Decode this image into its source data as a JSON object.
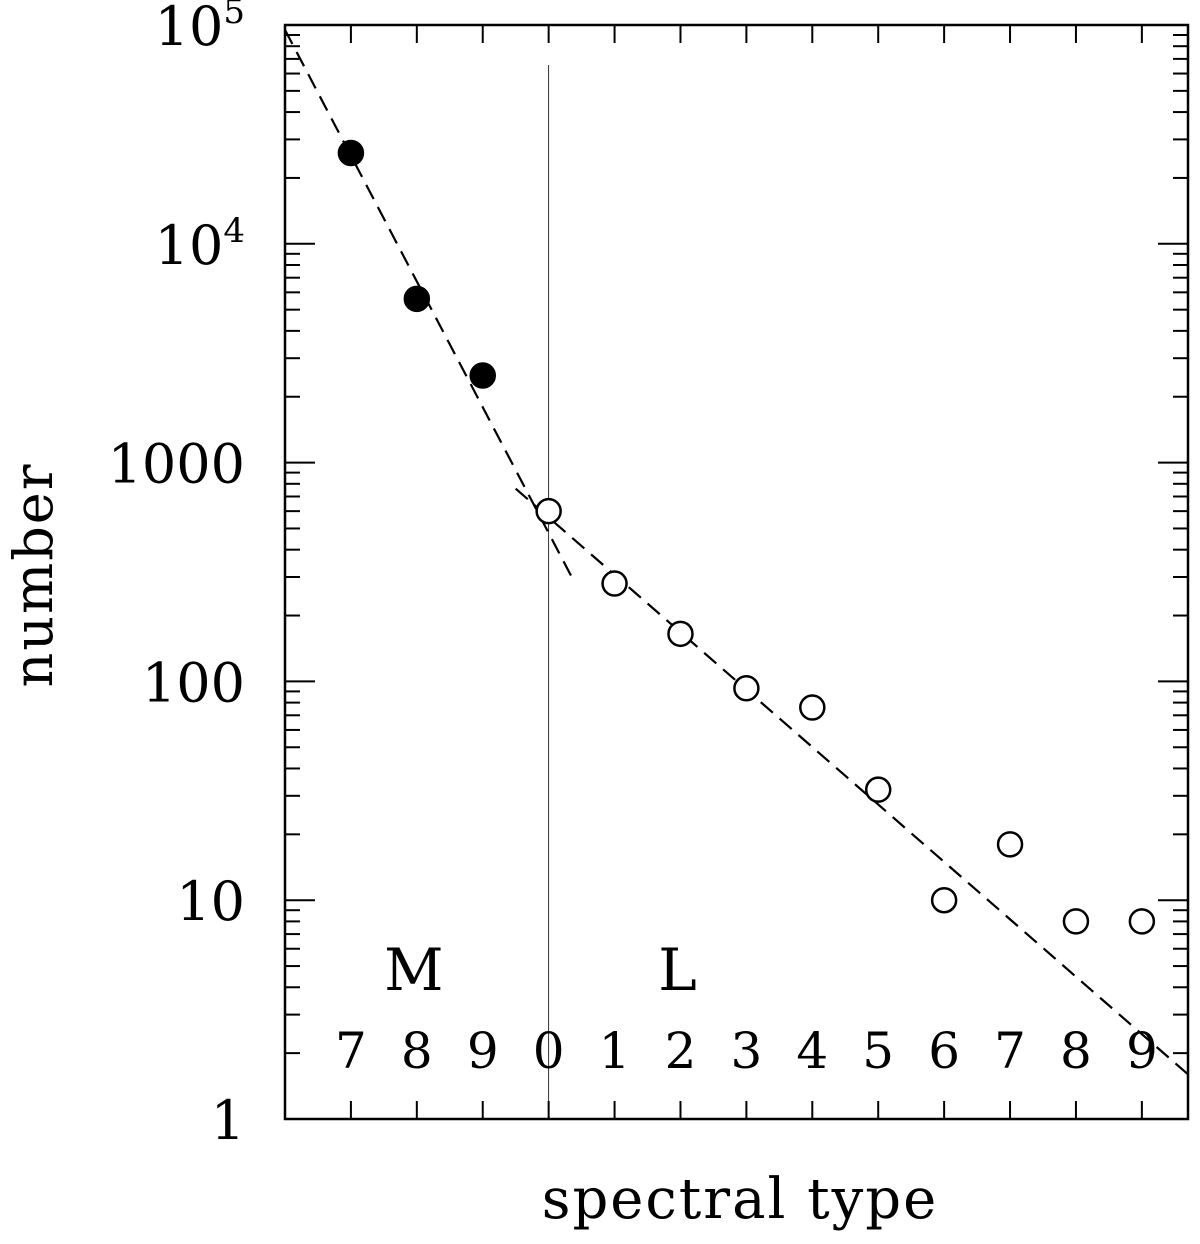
{
  "chart_data": {
    "type": "scatter",
    "xlabel": "spectral type",
    "ylabel": "number",
    "yscale": "log",
    "ylim": [
      1,
      100000
    ],
    "xlim": [
      6,
      19.7
    ],
    "y_tick_labels": [
      {
        "value": 1,
        "base": "1",
        "exp": ""
      },
      {
        "value": 10,
        "base": "10",
        "exp": ""
      },
      {
        "value": 100,
        "base": "100",
        "exp": ""
      },
      {
        "value": 1000,
        "base": "1000",
        "exp": ""
      },
      {
        "value": 10000,
        "base": "10",
        "exp": "4"
      },
      {
        "value": 100000,
        "base": "10",
        "exp": "5"
      }
    ],
    "x_tick_labels": [
      {
        "value": 7,
        "label": "7"
      },
      {
        "value": 8,
        "label": "8"
      },
      {
        "value": 9,
        "label": "9"
      },
      {
        "value": 10,
        "label": "0"
      },
      {
        "value": 11,
        "label": "1"
      },
      {
        "value": 12,
        "label": "2"
      },
      {
        "value": 13,
        "label": "3"
      },
      {
        "value": 14,
        "label": "4"
      },
      {
        "value": 15,
        "label": "5"
      },
      {
        "value": 16,
        "label": "6"
      },
      {
        "value": 17,
        "label": "7"
      },
      {
        "value": 18,
        "label": "8"
      },
      {
        "value": 19,
        "label": "9"
      }
    ],
    "class_labels": [
      {
        "text": "M",
        "x": 8
      },
      {
        "text": "L",
        "x": 12
      }
    ],
    "divider_x": 10,
    "series": [
      {
        "marker": "filled-circle",
        "points": [
          {
            "x": 7,
            "y": 26000
          },
          {
            "x": 8,
            "y": 5600
          },
          {
            "x": 9,
            "y": 2500
          }
        ]
      },
      {
        "marker": "open-circle",
        "points": [
          {
            "x": 10,
            "y": 600
          },
          {
            "x": 11,
            "y": 280
          },
          {
            "x": 12,
            "y": 165
          },
          {
            "x": 13,
            "y": 93
          },
          {
            "x": 14,
            "y": 76
          },
          {
            "x": 15,
            "y": 32
          },
          {
            "x": 16,
            "y": 10
          },
          {
            "x": 17,
            "y": 18
          },
          {
            "x": 18,
            "y": 8
          },
          {
            "x": 19,
            "y": 8
          }
        ]
      }
    ],
    "fit_lines": [
      {
        "style": "dashed",
        "points": [
          {
            "x": 6,
            "y": 95000
          },
          {
            "x": 10.35,
            "y": 300
          }
        ]
      },
      {
        "style": "dashed",
        "points": [
          {
            "x": 9.5,
            "y": 760
          },
          {
            "x": 19.7,
            "y": 1.6
          }
        ]
      }
    ]
  }
}
